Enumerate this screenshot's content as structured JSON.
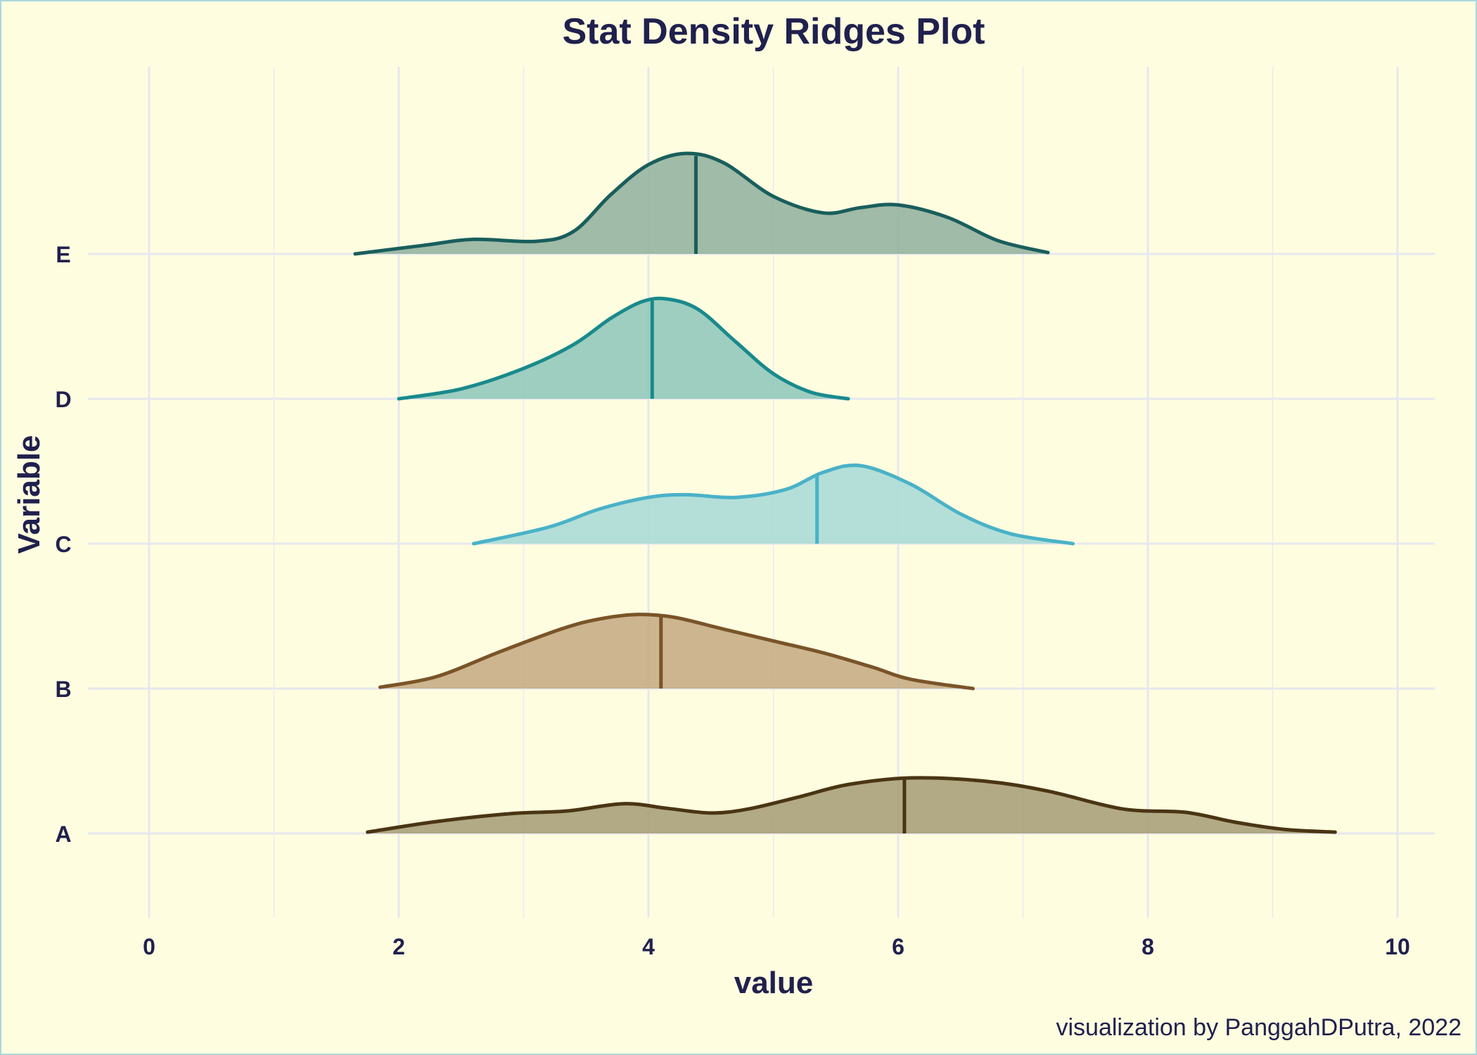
{
  "chart_data": {
    "type": "density-ridges",
    "title": "Stat Density Ridges Plot",
    "xlabel": "value",
    "ylabel": "Variable",
    "xlim": [
      -0.5,
      10.5
    ],
    "x_ticks": [
      0,
      2,
      4,
      6,
      8,
      10
    ],
    "grid": true,
    "legend": "none",
    "caption": "visualization by PanggahDPutra, 2022",
    "series": [
      {
        "name": "A",
        "fill": "#a59a74",
        "stroke": "#4a3512",
        "x": [
          1.75,
          2.3,
          2.9,
          3.35,
          3.8,
          4.15,
          4.5,
          4.8,
          5.2,
          5.6,
          6.1,
          6.7,
          7.2,
          7.8,
          8.3,
          8.7,
          9.1,
          9.5
        ],
        "density": [
          0.02,
          0.18,
          0.3,
          0.34,
          0.45,
          0.38,
          0.31,
          0.37,
          0.55,
          0.74,
          0.84,
          0.79,
          0.64,
          0.37,
          0.32,
          0.17,
          0.06,
          0.02
        ],
        "median": 6.05
      },
      {
        "name": "B",
        "fill": "#c3a880",
        "stroke": "#7a5428",
        "x": [
          1.85,
          2.3,
          2.8,
          3.3,
          3.6,
          3.9,
          4.2,
          4.6,
          5.0,
          5.4,
          5.8,
          6.1,
          6.6
        ],
        "density": [
          0.02,
          0.18,
          0.55,
          0.9,
          1.05,
          1.12,
          1.08,
          0.9,
          0.72,
          0.54,
          0.32,
          0.14,
          0.0
        ],
        "median": 4.1
      },
      {
        "name": "C",
        "fill": "#a6d9d6",
        "stroke": "#4ab2c8",
        "x": [
          2.6,
          3.2,
          3.6,
          4.0,
          4.3,
          4.7,
          5.1,
          5.4,
          5.7,
          6.1,
          6.5,
          6.9,
          7.4
        ],
        "density": [
          0.0,
          0.25,
          0.52,
          0.7,
          0.74,
          0.7,
          0.82,
          1.08,
          1.18,
          0.9,
          0.45,
          0.15,
          0.0
        ],
        "median": 5.35
      },
      {
        "name": "D",
        "fill": "#8dc5b8",
        "stroke": "#198a8c",
        "x": [
          2.0,
          2.5,
          3.0,
          3.4,
          3.7,
          3.95,
          4.15,
          4.4,
          4.7,
          5.0,
          5.3,
          5.6
        ],
        "density": [
          0.0,
          0.15,
          0.46,
          0.82,
          1.22,
          1.47,
          1.51,
          1.35,
          0.86,
          0.38,
          0.1,
          0.0
        ],
        "median": 4.03
      },
      {
        "name": "E",
        "fill": "#8faf9c",
        "stroke": "#195e5c",
        "x": [
          1.65,
          2.2,
          2.6,
          3.1,
          3.4,
          3.7,
          4.0,
          4.3,
          4.6,
          5.0,
          5.4,
          5.7,
          6.0,
          6.4,
          6.8,
          7.2
        ],
        "density": [
          0.0,
          0.13,
          0.22,
          0.19,
          0.34,
          0.9,
          1.35,
          1.52,
          1.38,
          0.87,
          0.62,
          0.7,
          0.74,
          0.55,
          0.2,
          0.02
        ],
        "median": 4.38
      }
    ]
  }
}
